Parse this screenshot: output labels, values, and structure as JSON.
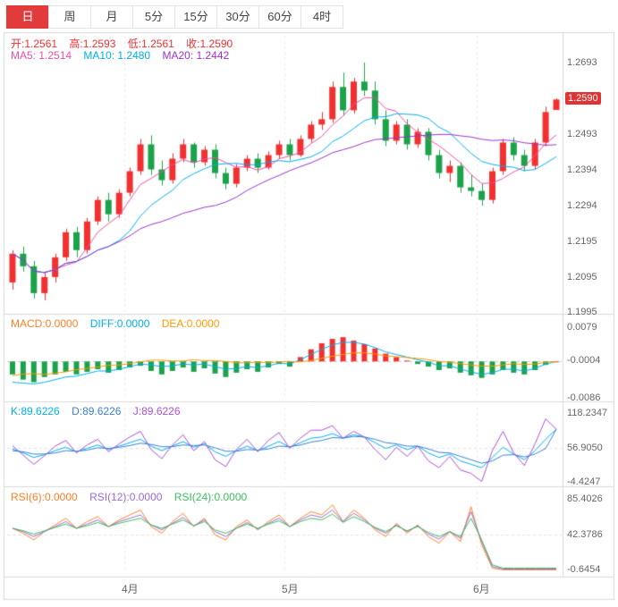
{
  "toolbar": {
    "tabs": [
      {
        "label": "日",
        "active": true
      },
      {
        "label": "周",
        "active": false
      },
      {
        "label": "月",
        "active": false
      },
      {
        "label": "5分",
        "active": false
      },
      {
        "label": "15分",
        "active": false
      },
      {
        "label": "30分",
        "active": false
      },
      {
        "label": "60分",
        "active": false
      },
      {
        "label": "4时",
        "active": false
      }
    ]
  },
  "main": {
    "ohlc": {
      "open": "开:1.2561",
      "high": "高:1.2593",
      "low": "低:1.2561",
      "close": "收:1.2590"
    },
    "ma_labels": {
      "ma5": "MA5: 1.2514",
      "ma10": "MA10: 1.2480",
      "ma20": "MA20: 1.2442"
    },
    "y_ticks": [
      "1.2693",
      "1.2493",
      "1.2394",
      "1.2294",
      "1.2195",
      "1.2095",
      "1.1995"
    ],
    "price_tag": "1.2590"
  },
  "macd": {
    "labels": {
      "macd": "MACD:0.0000",
      "diff": "DIFF:0.0000",
      "dea": "DEA:0.0000"
    },
    "y_ticks": [
      "0.0079",
      "-0.0004",
      "-0.0086"
    ]
  },
  "kdj": {
    "labels": {
      "k": "K:89.6226",
      "d": "D:89.6226",
      "j": "J:89.6226"
    },
    "y_ticks": [
      "118.2347",
      "56.9050",
      "-4.4247"
    ]
  },
  "rsi": {
    "labels": {
      "r6": "RSI(6):0.0000",
      "r12": "RSI(12):0.0000",
      "r24": "RSI(24):0.0000"
    },
    "y_ticks": [
      "85.4026",
      "42.3786",
      "-0.6454"
    ]
  },
  "x_axis": {
    "months": [
      "4月",
      "5月",
      "6月"
    ]
  },
  "colors": {
    "up": "#f23030",
    "down": "#1ca24a",
    "ma5": "#f04ea6",
    "ma10": "#00aeef",
    "ma20": "#9933cc",
    "diff": "#00aeef",
    "dea": "#ff9900",
    "k": "#00aeef",
    "d": "#3a7fd5",
    "j": "#aa4fd6",
    "rsi6": "#ff7f27",
    "rsi12": "#9b6bd6",
    "rsi24": "#3dbd5d",
    "accent_tab": "#e23b3b",
    "axis_text": "#666666"
  },
  "chart_data": {
    "type": "candlestick",
    "title": "",
    "price_ylim": [
      1.1995,
      1.2693
    ],
    "macd_ylim": [
      -0.0086,
      0.0079
    ],
    "kdj_ylim": [
      -4.4247,
      118.2347
    ],
    "rsi_ylim": [
      -0.6454,
      85.4026
    ],
    "month_start_indices": [
      11,
      26,
      44
    ],
    "ma_periods": [
      5,
      10,
      20
    ],
    "candles": [
      [
        1.208,
        1.217,
        1.206,
        1.216
      ],
      [
        1.216,
        1.218,
        1.211,
        1.2125
      ],
      [
        1.2125,
        1.214,
        1.2035,
        1.205
      ],
      [
        1.205,
        1.211,
        1.203,
        1.2095
      ],
      [
        1.2095,
        1.216,
        1.208,
        1.215
      ],
      [
        1.215,
        1.223,
        1.214,
        1.222
      ],
      [
        1.222,
        1.2235,
        1.215,
        1.217
      ],
      [
        1.217,
        1.226,
        1.216,
        1.225
      ],
      [
        1.225,
        1.232,
        1.224,
        1.231
      ],
      [
        1.231,
        1.233,
        1.225,
        1.227
      ],
      [
        1.227,
        1.234,
        1.226,
        1.233
      ],
      [
        1.233,
        1.24,
        1.232,
        1.239
      ],
      [
        1.239,
        1.248,
        1.238,
        1.2465
      ],
      [
        1.2465,
        1.249,
        1.238,
        1.2395
      ],
      [
        1.2395,
        1.242,
        1.235,
        1.2365
      ],
      [
        1.2365,
        1.244,
        1.2355,
        1.2425
      ],
      [
        1.2425,
        1.248,
        1.2415,
        1.2465
      ],
      [
        1.2465,
        1.247,
        1.24,
        1.2415
      ],
      [
        1.2415,
        1.246,
        1.2405,
        1.245
      ],
      [
        1.245,
        1.2465,
        1.237,
        1.2385
      ],
      [
        1.2385,
        1.24,
        1.234,
        1.2355
      ],
      [
        1.2355,
        1.241,
        1.2345,
        1.24
      ],
      [
        1.24,
        1.2435,
        1.239,
        1.2425
      ],
      [
        1.2425,
        1.244,
        1.2385,
        1.24
      ],
      [
        1.24,
        1.2445,
        1.2395,
        1.2435
      ],
      [
        1.2435,
        1.2475,
        1.2425,
        1.2465
      ],
      [
        1.2465,
        1.248,
        1.242,
        1.2435
      ],
      [
        1.2435,
        1.249,
        1.243,
        1.248
      ],
      [
        1.248,
        1.253,
        1.247,
        1.252
      ],
      [
        1.252,
        1.2555,
        1.2505,
        1.2535
      ],
      [
        1.2535,
        1.264,
        1.2525,
        1.2625
      ],
      [
        1.2625,
        1.2665,
        1.2545,
        1.256
      ],
      [
        1.256,
        1.265,
        1.255,
        1.264
      ],
      [
        1.264,
        1.2693,
        1.26,
        1.2615
      ],
      [
        1.2615,
        1.264,
        1.252,
        1.2535
      ],
      [
        1.2535,
        1.256,
        1.246,
        1.2475
      ],
      [
        1.2475,
        1.253,
        1.2465,
        1.252
      ],
      [
        1.252,
        1.2535,
        1.245,
        1.2465
      ],
      [
        1.2465,
        1.251,
        1.2455,
        1.25
      ],
      [
        1.25,
        1.251,
        1.242,
        1.2435
      ],
      [
        1.2435,
        1.245,
        1.237,
        1.2385
      ],
      [
        1.2385,
        1.242,
        1.236,
        1.2405
      ],
      [
        1.2405,
        1.2415,
        1.233,
        1.2345
      ],
      [
        1.2345,
        1.238,
        1.232,
        1.2335
      ],
      [
        1.2335,
        1.2355,
        1.2294,
        1.231
      ],
      [
        1.231,
        1.24,
        1.23,
        1.239
      ],
      [
        1.239,
        1.248,
        1.238,
        1.247
      ],
      [
        1.247,
        1.2485,
        1.242,
        1.2435
      ],
      [
        1.2435,
        1.245,
        1.239,
        1.2405
      ],
      [
        1.2405,
        1.248,
        1.2395,
        1.247
      ],
      [
        1.247,
        1.257,
        1.246,
        1.2555
      ],
      [
        1.2561,
        1.2593,
        1.2561,
        1.259
      ]
    ],
    "macd_hist": [
      -0.003,
      -0.0042,
      -0.0048,
      -0.0036,
      -0.003,
      -0.0024,
      -0.003,
      -0.0024,
      -0.0018,
      -0.0026,
      -0.002,
      -0.0014,
      -0.001,
      -0.0022,
      -0.003,
      -0.0022,
      -0.0014,
      -0.0024,
      -0.0016,
      -0.0028,
      -0.0036,
      -0.0026,
      -0.0018,
      -0.0024,
      -0.0014,
      -0.0006,
      -0.0012,
      0.001,
      0.0028,
      0.0042,
      0.0052,
      0.0056,
      0.0048,
      0.004,
      0.003,
      0.0018,
      0.001,
      0.0002,
      -0.0006,
      -0.0012,
      -0.002,
      -0.0016,
      -0.0026,
      -0.0032,
      -0.0038,
      -0.003,
      -0.002,
      -0.0026,
      -0.003,
      -0.002,
      -0.0008,
      0.0
    ],
    "macd_diff": [
      -0.0048,
      -0.005,
      -0.0052,
      -0.0048,
      -0.0042,
      -0.0036,
      -0.0034,
      -0.0028,
      -0.0022,
      -0.0022,
      -0.0018,
      -0.0012,
      -0.0006,
      -0.0008,
      -0.0012,
      -0.001,
      -0.0006,
      -0.0008,
      -0.0006,
      -0.0012,
      -0.0018,
      -0.0016,
      -0.0012,
      -0.0014,
      -0.001,
      -0.0004,
      -0.0006,
      0.0004,
      0.0016,
      0.0028,
      0.0038,
      0.0044,
      0.0044,
      0.004,
      0.0032,
      0.0022,
      0.0016,
      0.001,
      0.0004,
      -0.0002,
      -0.001,
      -0.001,
      -0.0018,
      -0.0024,
      -0.003,
      -0.0026,
      -0.0018,
      -0.0018,
      -0.0022,
      -0.0016,
      -0.0006,
      0.0
    ],
    "k": [
      55,
      48,
      40,
      45,
      52,
      58,
      50,
      56,
      62,
      54,
      60,
      66,
      72,
      60,
      52,
      60,
      68,
      58,
      64,
      50,
      42,
      52,
      60,
      52,
      60,
      68,
      58,
      66,
      74,
      76,
      82,
      74,
      80,
      76,
      66,
      56,
      62,
      54,
      60,
      48,
      40,
      46,
      34,
      28,
      22,
      40,
      58,
      46,
      36,
      52,
      72,
      89.6
    ],
    "d": [
      52,
      50,
      46,
      46,
      48,
      52,
      51,
      53,
      57,
      56,
      58,
      61,
      65,
      63,
      59,
      59,
      62,
      61,
      62,
      57,
      51,
      51,
      54,
      53,
      55,
      60,
      59,
      62,
      67,
      70,
      75,
      74,
      77,
      76,
      72,
      66,
      64,
      60,
      60,
      55,
      49,
      48,
      42,
      36,
      30,
      34,
      44,
      45,
      41,
      46,
      56,
      89.6
    ],
    "j": [
      61,
      44,
      28,
      43,
      60,
      70,
      48,
      62,
      72,
      50,
      64,
      76,
      86,
      54,
      38,
      62,
      80,
      52,
      68,
      36,
      24,
      54,
      72,
      50,
      70,
      84,
      56,
      74,
      88,
      88,
      96,
      74,
      86,
      76,
      54,
      36,
      58,
      42,
      60,
      34,
      22,
      42,
      18,
      12,
      -2,
      52,
      86,
      48,
      26,
      64,
      108,
      89.6
    ],
    "rsi6": [
      50,
      44,
      36,
      46,
      54,
      62,
      50,
      58,
      64,
      52,
      60,
      66,
      72,
      52,
      44,
      58,
      68,
      52,
      62,
      42,
      36,
      52,
      60,
      48,
      58,
      66,
      52,
      62,
      70,
      66,
      78,
      58,
      72,
      62,
      48,
      40,
      56,
      44,
      54,
      40,
      32,
      46,
      34,
      76,
      30,
      2,
      0,
      0,
      0,
      0,
      0,
      0
    ],
    "rsi12": [
      50,
      46,
      40,
      46,
      52,
      58,
      50,
      55,
      60,
      52,
      58,
      62,
      66,
      54,
      48,
      56,
      63,
      53,
      60,
      46,
      40,
      50,
      57,
      49,
      56,
      62,
      52,
      60,
      66,
      63,
      72,
      58,
      68,
      60,
      50,
      44,
      54,
      46,
      53,
      43,
      37,
      46,
      38,
      70,
      34,
      4,
      1,
      1,
      1,
      1,
      1,
      1
    ],
    "rsi24": [
      50,
      47,
      43,
      47,
      51,
      55,
      50,
      53,
      57,
      52,
      56,
      59,
      62,
      54,
      50,
      55,
      60,
      53,
      58,
      48,
      44,
      50,
      55,
      50,
      55,
      59,
      52,
      58,
      62,
      60,
      67,
      57,
      64,
      58,
      51,
      46,
      53,
      47,
      52,
      45,
      40,
      46,
      40,
      62,
      36,
      6,
      2,
      2,
      2,
      2,
      2,
      2
    ]
  }
}
